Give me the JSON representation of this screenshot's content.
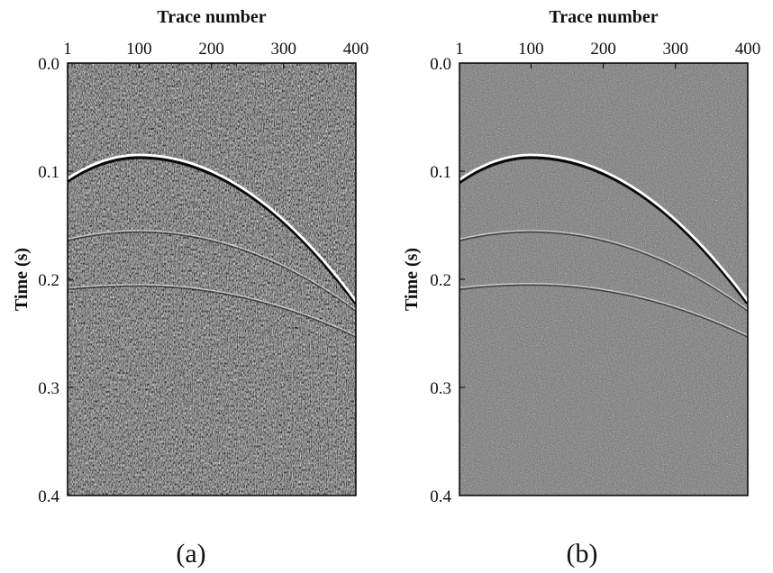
{
  "chart_data": [
    {
      "type": "heatmap",
      "panel_label": "(a)",
      "xlabel": "Trace number",
      "ylabel": "Time (s)",
      "xlim": [
        1,
        400
      ],
      "ylim": [
        0.0,
        0.4
      ],
      "xticks": [
        "1",
        "100",
        "200",
        "300",
        "400"
      ],
      "yticks": [
        "0.0",
        "0.1",
        "0.2",
        "0.3",
        "0.4"
      ],
      "colormap": "gray",
      "background": "strong coherent-noise texture",
      "events": [
        {
          "t0": 0.085,
          "apex_trace": 100,
          "t_at_trace_1": 0.107,
          "t_at_trace_400": 0.22,
          "amplitude": "strong"
        },
        {
          "t0": 0.155,
          "apex_trace": 100,
          "t_at_trace_1": 0.163,
          "t_at_trace_400": 0.228,
          "amplitude": "weak"
        },
        {
          "t0": 0.205,
          "apex_trace": 100,
          "t_at_trace_1": 0.208,
          "t_at_trace_400": 0.252,
          "amplitude": "weak"
        }
      ]
    },
    {
      "type": "heatmap",
      "panel_label": "(b)",
      "xlabel": "Trace number",
      "ylabel": "Time (s)",
      "xlim": [
        1,
        400
      ],
      "ylim": [
        0.0,
        0.4
      ],
      "xticks": [
        "1",
        "100",
        "200",
        "300",
        "400"
      ],
      "yticks": [
        "0.0",
        "0.1",
        "0.2",
        "0.3",
        "0.4"
      ],
      "colormap": "gray",
      "background": "random noise",
      "events": [
        {
          "t0": 0.085,
          "apex_trace": 100,
          "t_at_trace_1": 0.108,
          "t_at_trace_400": 0.22,
          "amplitude": "strong"
        },
        {
          "t0": 0.155,
          "apex_trace": 100,
          "t_at_trace_1": 0.163,
          "t_at_trace_400": 0.228,
          "amplitude": "weak"
        },
        {
          "t0": 0.204,
          "apex_trace": 100,
          "t_at_trace_1": 0.208,
          "t_at_trace_400": 0.252,
          "amplitude": "weak"
        }
      ]
    }
  ]
}
